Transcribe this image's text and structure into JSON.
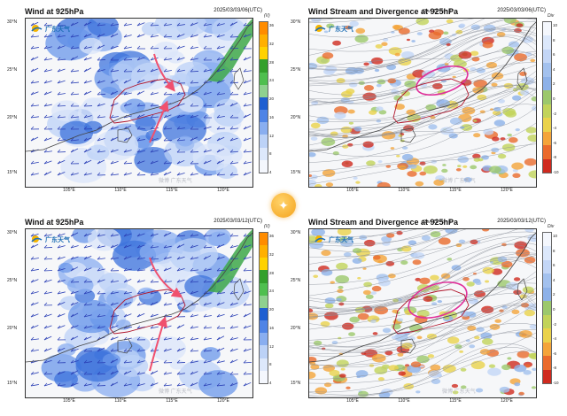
{
  "panels": [
    {
      "id": "tl",
      "title": "Wind at 925hPa",
      "date": "2025/03/03/06(UTC)",
      "unit": "",
      "kind": "wind",
      "cbar_unit": "(V)",
      "cbar_labels": [
        "36",
        "32",
        "28",
        "24",
        "20",
        "16",
        "12",
        "8",
        "4"
      ],
      "cbar_colors": [
        "#ff8c00",
        "#ffb000",
        "#ffd200",
        "#33a02c",
        "#4fbf4f",
        "#8fd18f",
        "#1f5fd1",
        "#4f84e6",
        "#89aef0",
        "#bcd2f7",
        "#dde8fb",
        "#f4f7fd"
      ]
    },
    {
      "id": "tr",
      "title": "Wind Stream and Divergence at 925hPa",
      "date": "2025/03/03/06(UTC)",
      "unit": "(Div: 10⁻⁵s⁻¹)",
      "kind": "div",
      "cbar_unit": "Div",
      "cbar_labels": [
        "10",
        "8",
        "6",
        "4",
        "2",
        "0",
        "-2",
        "-4",
        "-6",
        "-8",
        "-10"
      ],
      "cbar_colors": [
        "#f4f7fd",
        "#dce8fb",
        "#c3d6f6",
        "#a3c1ee",
        "#8db1e8",
        "#9cc86c",
        "#c2d35a",
        "#ead24b",
        "#f4a43a",
        "#ea6a2c",
        "#cf2a1f"
      ]
    },
    {
      "id": "bl",
      "title": "Wind at 925hPa",
      "date": "2025/03/03/12(UTC)",
      "unit": "",
      "kind": "wind",
      "cbar_unit": "(V)",
      "cbar_labels": [
        "36",
        "32",
        "28",
        "24",
        "20",
        "16",
        "12",
        "8",
        "4"
      ],
      "cbar_colors": [
        "#ff8c00",
        "#ffb000",
        "#ffd200",
        "#33a02c",
        "#4fbf4f",
        "#8fd18f",
        "#1f5fd1",
        "#4f84e6",
        "#89aef0",
        "#bcd2f7",
        "#dde8fb",
        "#f4f7fd"
      ]
    },
    {
      "id": "br",
      "title": "Wind Stream and Divergence at 925hPa",
      "date": "2025/03/03/12(UTC)",
      "unit": "(Div: 10⁻⁵s⁻¹)",
      "kind": "div",
      "cbar_unit": "Div",
      "cbar_labels": [
        "10",
        "8",
        "6",
        "4",
        "2",
        "0",
        "-2",
        "-4",
        "-6",
        "-8",
        "-10"
      ],
      "cbar_colors": [
        "#f4f7fd",
        "#dce8fb",
        "#c3d6f6",
        "#a3c1ee",
        "#8db1e8",
        "#9cc86c",
        "#c2d35a",
        "#ead24b",
        "#f4a43a",
        "#ea6a2c",
        "#cf2a1f"
      ]
    }
  ],
  "logo_text": "广东天气",
  "watermark": "微博 广东天气",
  "y_ticks": [
    "30°N",
    "25°N",
    "20°N",
    "15°N"
  ],
  "x_ticks": [
    "105°E",
    "110°E",
    "115°E",
    "120°E"
  ],
  "colors": {
    "arrow": "#f0506e",
    "ellipse": "#e0309a",
    "boundary": "#b0142a",
    "barb": "#2a3fb5",
    "coast": "#444444"
  }
}
